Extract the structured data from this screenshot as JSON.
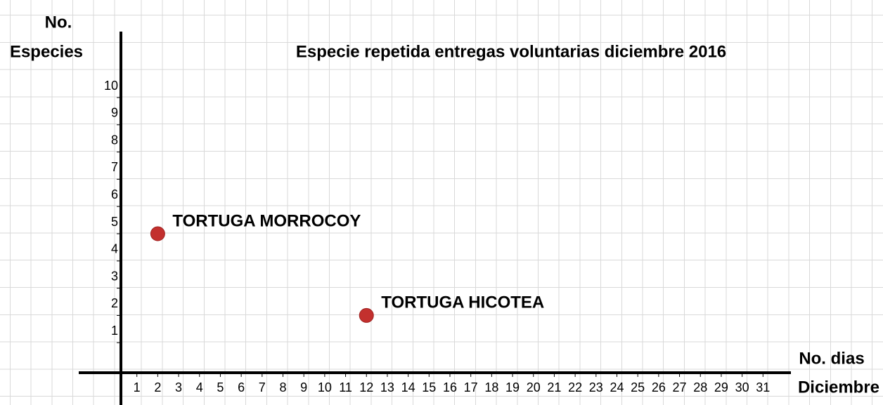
{
  "chart_data": {
    "type": "scatter",
    "title": "Especie repetida entregas voluntarias diciembre 2016",
    "y_label": [
      "No.",
      "Especies"
    ],
    "x_label": [
      "No. dias",
      "Diciembre"
    ],
    "x": [
      2,
      12
    ],
    "values": [
      5,
      2
    ],
    "point_labels": [
      "TORTUGA MORROCOY",
      "TORTUGA HICOTEA"
    ],
    "color": "#c3302e",
    "xlim": [
      0,
      32
    ],
    "ylim": [
      0,
      10
    ],
    "xticks": [
      1,
      2,
      3,
      4,
      5,
      6,
      7,
      8,
      9,
      10,
      11,
      12,
      13,
      14,
      15,
      16,
      17,
      18,
      19,
      20,
      21,
      22,
      23,
      24,
      25,
      26,
      27,
      28,
      29,
      30,
      31
    ],
    "yticks": [
      1,
      2,
      3,
      4,
      5,
      6,
      7,
      8,
      9,
      10
    ]
  }
}
